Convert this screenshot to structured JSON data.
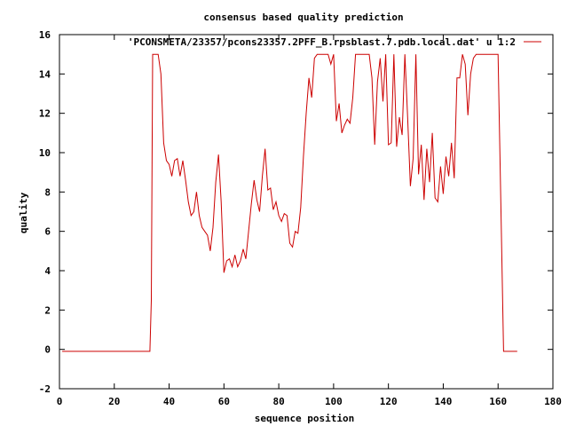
{
  "chart_data": {
    "type": "line",
    "title": "consensus based quality prediction",
    "xlabel": "sequence position",
    "ylabel": "quality",
    "xlim": [
      0,
      180
    ],
    "ylim": [
      -2,
      16
    ],
    "xticks": [
      0,
      20,
      40,
      60,
      80,
      100,
      120,
      140,
      160,
      180
    ],
    "yticks": [
      -2,
      0,
      2,
      4,
      6,
      8,
      10,
      12,
      14,
      16
    ],
    "xtick_labels": [
      "0",
      "20",
      "40",
      "60",
      "80",
      "100",
      "120",
      "140",
      "160",
      "180"
    ],
    "ytick_labels": [
      "-2",
      "0",
      "2",
      "4",
      "6",
      "8",
      "10",
      "12",
      "14",
      "16"
    ],
    "grid": false,
    "legend_position": "top-right",
    "series": [
      {
        "name": "'PCONSMETA/23357/pcons23357.2PFF_B.rpsblast.7.pdb.local.dat' u 1:2",
        "color": "#cc0000",
        "x": [
          1,
          33,
          33.5,
          34,
          36,
          37,
          38,
          39,
          40,
          41,
          42,
          43,
          44,
          45,
          46,
          47,
          48,
          49,
          50,
          51,
          52,
          53,
          54,
          55,
          56,
          57,
          58,
          59,
          60,
          61,
          62,
          63,
          64,
          65,
          66,
          67,
          68,
          69,
          70,
          71,
          72,
          73,
          74,
          75,
          76,
          77,
          78,
          79,
          80,
          81,
          82,
          83,
          84,
          85,
          86,
          87,
          88,
          89,
          90,
          91,
          92,
          93,
          94,
          95,
          96,
          97,
          98,
          99,
          100,
          101,
          102,
          103,
          104,
          105,
          106,
          107,
          108,
          109,
          110,
          111,
          112,
          113,
          114,
          115,
          116,
          117,
          118,
          119,
          120,
          121,
          122,
          123,
          124,
          125,
          126,
          127,
          128,
          129,
          130,
          131,
          132,
          133,
          134,
          135,
          136,
          137,
          138,
          139,
          140,
          141,
          142,
          143,
          144,
          145,
          146,
          147,
          148,
          149,
          150,
          151,
          152,
          153,
          154,
          155,
          156,
          157,
          158,
          159,
          160,
          161,
          162,
          163,
          164,
          165,
          166,
          167
        ],
        "y": [
          -0.1,
          -0.1,
          2.5,
          15,
          15,
          14,
          10.5,
          9.6,
          9.4,
          8.8,
          9.6,
          9.7,
          8.8,
          9.6,
          8.6,
          7.5,
          6.8,
          7,
          8,
          6.8,
          6.2,
          6,
          5.8,
          5,
          6.2,
          8.5,
          9.9,
          7.5,
          3.9,
          4.5,
          4.6,
          4.2,
          4.8,
          4.2,
          4.5,
          5.1,
          4.6,
          6,
          7.4,
          8.6,
          7.6,
          7,
          8.8,
          10.2,
          8.1,
          8.2,
          7.1,
          7.5,
          6.8,
          6.5,
          6.9,
          6.8,
          5.4,
          5.2,
          6,
          5.9,
          7.2,
          9.8,
          12,
          13.8,
          12.8,
          14.8,
          15,
          15,
          15,
          15,
          15,
          14.5,
          15,
          11.6,
          12.5,
          11,
          11.4,
          11.7,
          11.5,
          12.8,
          15,
          15,
          15,
          15,
          15,
          15,
          13.8,
          10.4,
          13.6,
          14.8,
          12.6,
          15,
          10.4,
          10.5,
          15,
          10.3,
          11.8,
          10.9,
          15,
          11.8,
          8.3,
          9.7,
          15,
          8.9,
          10.4,
          7.6,
          10.2,
          8.5,
          11,
          7.7,
          7.5,
          9.3,
          7.9,
          9.8,
          8.8,
          10.5,
          8.7,
          13.8,
          13.8,
          15,
          14.5,
          11.9,
          14,
          14.8,
          15,
          15,
          15,
          15,
          15,
          15,
          15,
          15,
          15,
          7.5,
          -0.1,
          -0.1,
          -0.1,
          -0.1,
          -0.1,
          -0.1
        ]
      }
    ]
  }
}
